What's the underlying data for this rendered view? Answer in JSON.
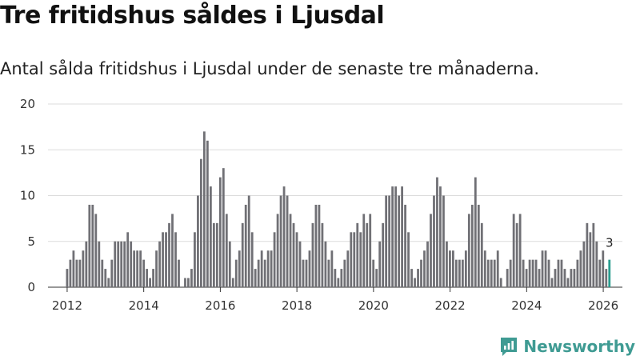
{
  "header": {
    "title": "Tre fritidshus såldes i Ljusdal",
    "subtitle": "Antal sålda fritidshus i Ljusdal under de senaste tre månaderna."
  },
  "brand": {
    "name": "Newsworthy",
    "icon": "bar-chart-logo-icon"
  },
  "colors": {
    "bar": "#707075",
    "highlight": "#2a9d8f",
    "grid": "#dcdcdc",
    "brand": "#3f9b93"
  },
  "chart_data": {
    "type": "bar",
    "title": "Tre fritidshus såldes i Ljusdal",
    "subtitle": "Antal sålda fritidshus i Ljusdal under de senaste tre månaderna.",
    "xlabel": "",
    "ylabel": "",
    "ylim": [
      0,
      20
    ],
    "yticks": [
      "0",
      "5",
      "10",
      "15",
      "20"
    ],
    "xlim": [
      2011.5,
      2026.5
    ],
    "xticks": [
      "2012",
      "2014",
      "2016",
      "2018",
      "2020",
      "2022",
      "2024",
      "2026"
    ],
    "start": 2012.0,
    "step": 0.0833,
    "values": [
      2,
      3,
      4,
      3,
      3,
      4,
      5,
      9,
      9,
      8,
      5,
      3,
      2,
      1,
      3,
      5,
      5,
      5,
      5,
      6,
      5,
      4,
      4,
      4,
      3,
      2,
      1,
      2,
      4,
      5,
      6,
      6,
      7,
      8,
      6,
      3,
      0,
      1,
      1,
      2,
      6,
      10,
      14,
      17,
      16,
      11,
      7,
      7,
      12,
      13,
      8,
      5,
      1,
      3,
      4,
      7,
      9,
      10,
      6,
      2,
      3,
      4,
      3,
      4,
      4,
      6,
      8,
      10,
      11,
      10,
      8,
      7,
      6,
      5,
      3,
      3,
      4,
      7,
      9,
      9,
      7,
      5,
      3,
      4,
      2,
      1,
      2,
      3,
      4,
      6,
      6,
      7,
      6,
      8,
      7,
      8,
      3,
      2,
      5,
      7,
      10,
      10,
      11,
      11,
      10,
      11,
      9,
      6,
      2,
      1,
      2,
      3,
      4,
      5,
      8,
      10,
      12,
      11,
      10,
      5,
      4,
      4,
      3,
      3,
      3,
      4,
      8,
      9,
      12,
      9,
      7,
      4,
      3,
      3,
      3,
      4,
      1,
      0,
      2,
      3,
      8,
      7,
      8,
      3,
      2,
      3,
      3,
      3,
      2,
      4,
      4,
      3,
      1,
      2,
      3,
      3,
      2,
      1,
      2,
      2,
      3,
      4,
      5,
      7,
      6,
      7,
      5,
      3,
      4,
      2,
      3
    ],
    "series": [
      {
        "name": "Antal sålda fritidshus",
        "values": "see values"
      }
    ],
    "annotations": [
      {
        "label": "3",
        "index": "last"
      }
    ]
  }
}
